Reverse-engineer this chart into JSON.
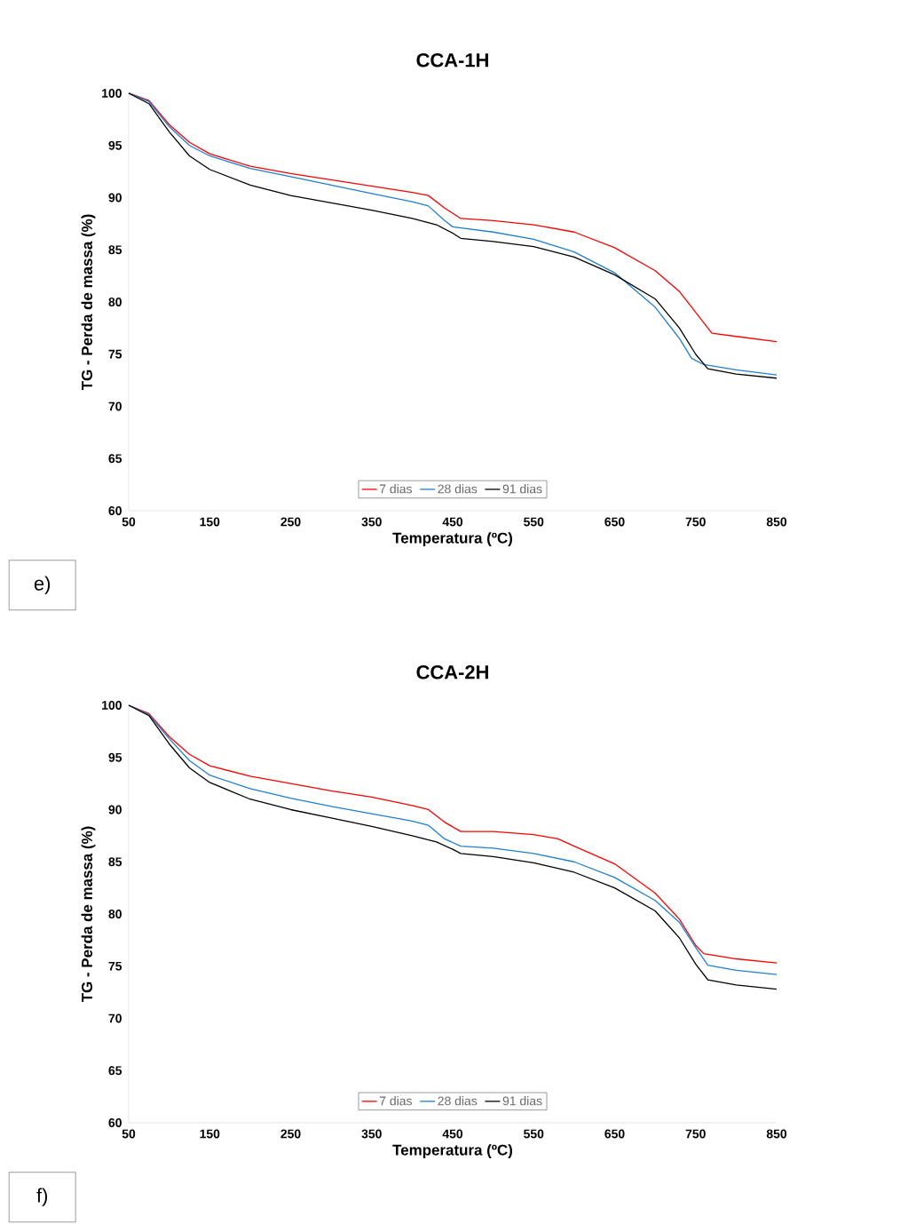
{
  "chart_data": [
    {
      "type": "line",
      "title": "CCA-1H",
      "xlabel": "Temperatura (ºC)",
      "ylabel": "TG - Perda de massa (%)",
      "annotations": [
        "e)"
      ],
      "legend": "bottom",
      "grid": false,
      "xlim": [
        50,
        850
      ],
      "xticks": [
        50,
        150,
        250,
        350,
        450,
        550,
        650,
        750,
        850
      ],
      "ylim": [
        60,
        100
      ],
      "yticks": [
        60,
        65,
        70,
        75,
        80,
        85,
        90,
        95,
        100
      ],
      "series": [
        {
          "name": "7 dias",
          "color": "#ff0000",
          "x": [
            50,
            75,
            100,
            125,
            150,
            200,
            250,
            300,
            350,
            400,
            420,
            440,
            460,
            500,
            550,
            600,
            650,
            700,
            730,
            750,
            770,
            800,
            850
          ],
          "values": [
            100,
            99.3,
            97,
            95.3,
            94.2,
            93,
            92.3,
            91.7,
            91.1,
            90.5,
            90.2,
            89,
            88,
            87.8,
            87.4,
            86.7,
            85.2,
            83,
            81,
            79,
            77,
            76.7,
            76.2
          ]
        },
        {
          "name": "28 dias",
          "color": "#1f7fd0",
          "x": [
            50,
            75,
            100,
            125,
            150,
            200,
            250,
            300,
            350,
            400,
            420,
            440,
            450,
            500,
            550,
            600,
            650,
            700,
            730,
            745,
            760,
            800,
            850
          ],
          "values": [
            100,
            99.2,
            96.8,
            95,
            94,
            92.8,
            92,
            91.2,
            90.4,
            89.6,
            89.2,
            87.8,
            87.2,
            86.7,
            86,
            84.8,
            82.8,
            79.5,
            76.5,
            74.6,
            74,
            73.5,
            73
          ]
        },
        {
          "name": "91 dias",
          "color": "#000000",
          "x": [
            50,
            75,
            100,
            125,
            150,
            200,
            250,
            300,
            350,
            400,
            430,
            450,
            460,
            500,
            550,
            600,
            650,
            700,
            730,
            750,
            765,
            800,
            850
          ],
          "values": [
            100,
            99,
            96.3,
            94,
            92.7,
            91.2,
            90.2,
            89.5,
            88.8,
            88,
            87.4,
            86.6,
            86.1,
            85.8,
            85.3,
            84.3,
            82.6,
            80.3,
            77.5,
            75,
            73.6,
            73.1,
            72.7
          ]
        }
      ]
    },
    {
      "type": "line",
      "title": "CCA-2H",
      "xlabel": "Temperatura (ºC)",
      "ylabel": "TG - Perda de massa (%)",
      "annotations": [
        "f)"
      ],
      "legend": "bottom",
      "grid": false,
      "xlim": [
        50,
        850
      ],
      "xticks": [
        50,
        150,
        250,
        350,
        450,
        550,
        650,
        750,
        850
      ],
      "ylim": [
        60,
        100
      ],
      "yticks": [
        60,
        65,
        70,
        75,
        80,
        85,
        90,
        95,
        100
      ],
      "series": [
        {
          "name": "7 dias",
          "color": "#ff0000",
          "x": [
            50,
            75,
            100,
            125,
            150,
            200,
            250,
            300,
            350,
            400,
            420,
            440,
            460,
            500,
            550,
            580,
            600,
            650,
            700,
            730,
            750,
            760,
            800,
            850
          ],
          "values": [
            100,
            99.2,
            97,
            95.3,
            94.2,
            93.2,
            92.5,
            91.8,
            91.2,
            90.4,
            90,
            88.8,
            87.9,
            87.9,
            87.6,
            87.2,
            86.5,
            84.8,
            82,
            79.5,
            77,
            76.2,
            75.7,
            75.3
          ]
        },
        {
          "name": "28 dias",
          "color": "#1f7fd0",
          "x": [
            50,
            75,
            100,
            125,
            150,
            200,
            250,
            300,
            350,
            400,
            420,
            440,
            460,
            500,
            550,
            600,
            650,
            700,
            730,
            750,
            765,
            800,
            850
          ],
          "values": [
            100,
            99.1,
            96.8,
            94.7,
            93.3,
            92,
            91.1,
            90.3,
            89.6,
            88.9,
            88.5,
            87.2,
            86.5,
            86.3,
            85.8,
            85,
            83.5,
            81.3,
            79.2,
            76.8,
            75.1,
            74.6,
            74.2
          ]
        },
        {
          "name": "91 dias",
          "color": "#000000",
          "x": [
            50,
            75,
            100,
            125,
            150,
            200,
            250,
            300,
            350,
            400,
            430,
            450,
            460,
            500,
            550,
            600,
            650,
            700,
            730,
            750,
            765,
            800,
            850
          ],
          "values": [
            100,
            99,
            96.3,
            94,
            92.6,
            91,
            90,
            89.2,
            88.4,
            87.5,
            86.9,
            86.2,
            85.8,
            85.5,
            84.9,
            84,
            82.5,
            80.3,
            77.7,
            75.2,
            73.7,
            73.2,
            72.8
          ]
        }
      ]
    }
  ]
}
